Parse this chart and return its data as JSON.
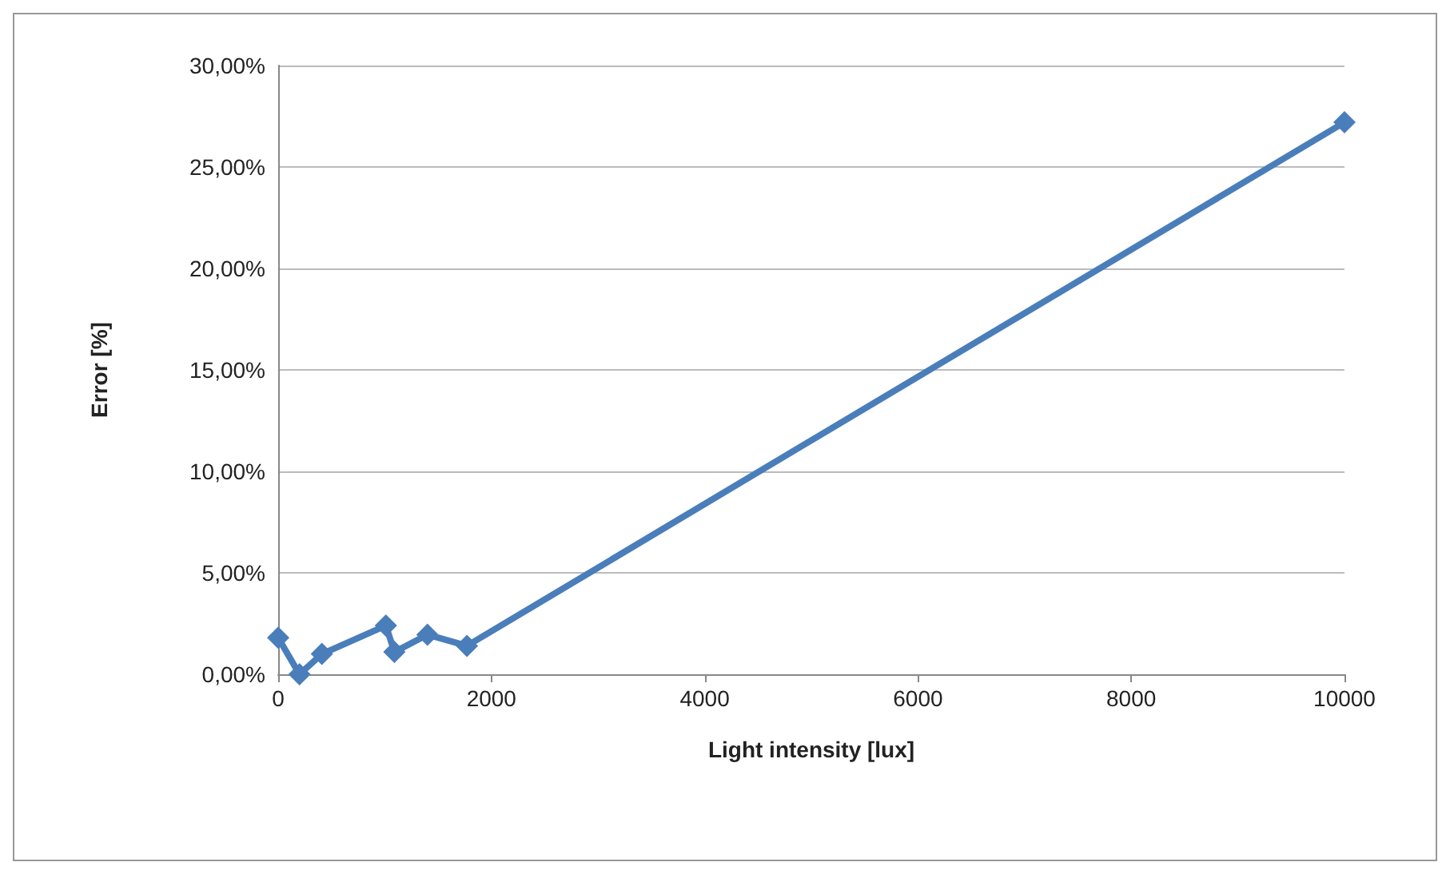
{
  "chart_data": {
    "type": "line",
    "xlabel": "Light intensity [lux]",
    "ylabel": "Error [%]",
    "x": [
      0,
      200,
      410,
      1010,
      1090,
      1400,
      1770,
      10000
    ],
    "values": [
      1.8,
      0,
      1.0,
      2.4,
      1.1,
      1.95,
      1.4,
      27.2
    ],
    "color": "#4a7ebb",
    "marker": "diamond",
    "line_style": "solid",
    "grid": "y",
    "xlim": [
      0,
      10000
    ],
    "xticks": [
      0,
      2000,
      4000,
      6000,
      8000,
      10000
    ],
    "ylim": [
      0,
      30
    ],
    "yticks": [
      {
        "value": 0,
        "label": "0,00%"
      },
      {
        "value": 5,
        "label": "5,00%"
      },
      {
        "value": 10,
        "label": "10,00%"
      },
      {
        "value": 15,
        "label": "15,00%"
      },
      {
        "value": 20,
        "label": "20,00%"
      },
      {
        "value": 25,
        "label": "25,00%"
      },
      {
        "value": 30,
        "label": "30,00%"
      }
    ]
  }
}
